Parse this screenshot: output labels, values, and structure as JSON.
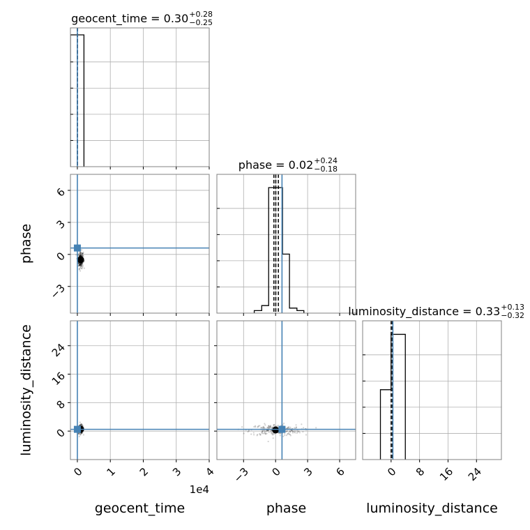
{
  "chart_data": {
    "type": "corner",
    "parameters": [
      "geocent_time",
      "phase",
      "luminosity_distance"
    ],
    "axis_labels": {
      "geocent_time": "geocent_time",
      "phase": "phase",
      "luminosity_distance": "luminosity_distance"
    },
    "titles": [
      {
        "param": "geocent_time",
        "name": "geocent_time",
        "median": "0.30",
        "plus": "+0.28",
        "minus": "−0.25"
      },
      {
        "param": "phase",
        "name": "phase",
        "median": "0.02",
        "plus": "+0.24",
        "minus": "−0.18"
      },
      {
        "param": "luminosity_distance",
        "name": "luminosity_distance",
        "median": "0.33",
        "plus": "+0.13",
        "minus": "−0.32"
      }
    ],
    "ranges": {
      "geocent_time": [
        -2100,
        40000
      ],
      "phase": [
        -5.5,
        7.5
      ],
      "luminosity_distance": [
        -8,
        31
      ]
    },
    "ticks": {
      "geocent_time": [
        0,
        10000,
        20000,
        30000,
        40000
      ],
      "phase": [
        -3,
        0,
        3,
        6
      ],
      "luminosity_distance": [
        0,
        8,
        16,
        24
      ]
    },
    "tick_labels": {
      "geocent_time": [
        "0",
        "1",
        "2",
        "3",
        "4"
      ],
      "phase": [
        "−3",
        "0",
        "3",
        "6"
      ],
      "luminosity_distance": [
        "0",
        "8",
        "16",
        "24"
      ]
    },
    "offset_text": {
      "geocent_time": "1e4"
    },
    "truths": {
      "geocent_time": 0,
      "phase": 0.6,
      "luminosity_distance": 0.5
    },
    "truth_color": "#4682b4",
    "histograms": {
      "geocent_time": {
        "edges": [
          -2100,
          0,
          2000
        ],
        "counts": [
          1.0,
          1.0
        ],
        "quantiles": [
          0.05,
          0.3,
          0.58
        ],
        "ylim": [
          0,
          1.0
        ]
      },
      "phase": {
        "edges": [
          -2.0,
          -1.3,
          -0.65,
          0.0,
          0.65,
          1.3,
          2.0,
          2.65
        ],
        "counts": [
          0.02,
          0.06,
          1.0,
          1.0,
          0.47,
          0.04,
          0.02
        ],
        "quantiles": [
          -0.16,
          0.02,
          0.26
        ],
        "ylim": [
          0,
          1.05
        ]
      },
      "luminosity_distance": {
        "edges": [
          -3.0,
          0.0,
          2.0,
          4.0
        ],
        "counts": [
          0.53,
          0.95,
          0.95
        ],
        "quantiles": [
          0.01,
          0.33,
          0.46
        ],
        "ylim": [
          0,
          1.0
        ]
      }
    },
    "scatter": {
      "phase|geocent_time": {
        "x_param": "geocent_time",
        "y_param": "phase",
        "center": [
          1000,
          -0.5
        ],
        "spread": [
          400,
          0.4
        ]
      },
      "luminosity_distance|geocent_time": {
        "x_param": "geocent_time",
        "y_param": "luminosity_distance",
        "center": [
          1000,
          0.5
        ],
        "spread": [
          400,
          0.6
        ]
      },
      "luminosity_distance|phase": {
        "x_param": "phase",
        "y_param": "luminosity_distance",
        "center": [
          0.0,
          0.3
        ],
        "spread": [
          1.2,
          0.8
        ]
      }
    },
    "grid": true
  }
}
